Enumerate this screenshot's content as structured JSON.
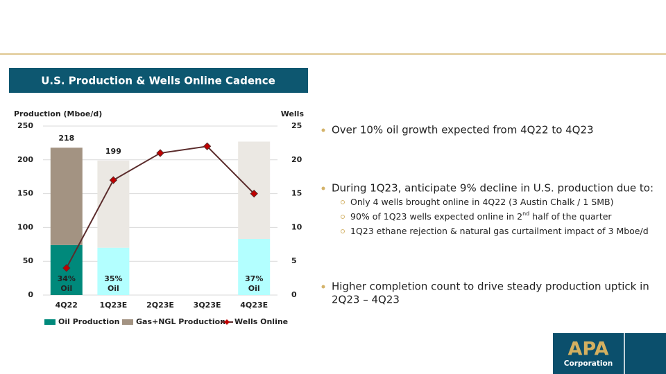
{
  "header": {
    "title": "U.S. Production & Wells Online Cadence"
  },
  "chart_data": {
    "type": "bar",
    "y_axis_title": "Production (Mboe/d)",
    "y2_axis_title": "Wells",
    "categories": [
      "4Q22",
      "1Q23E",
      "2Q23E",
      "3Q23E",
      "4Q23E"
    ],
    "series": [
      {
        "name": "Oil Production",
        "color": "#00897b",
        "colors": [
          "#00897b",
          "#b3ffff",
          null,
          null,
          "#b3ffff"
        ],
        "values": [
          74,
          70,
          null,
          null,
          83
        ]
      },
      {
        "name": "Gas+NGL Production",
        "color": "#a39382",
        "colors": [
          "#a39382",
          "#ebe8e3",
          null,
          null,
          "#ebe8e3"
        ],
        "values": [
          144,
          129,
          null,
          null,
          144
        ]
      },
      {
        "name": "Wells Online",
        "type": "line",
        "axis": "y2",
        "color": "#5b2c2c",
        "marker_color": "#c00000",
        "values": [
          4,
          17,
          21,
          22,
          15
        ]
      }
    ],
    "totals": [
      218,
      199,
      null,
      null,
      null
    ],
    "oil_share_labels": [
      "34%",
      "35%",
      null,
      null,
      "37%"
    ],
    "oil_share_caption": "Oil",
    "ylim": [
      0,
      250
    ],
    "yticks": [
      0,
      50,
      100,
      150,
      200,
      250
    ],
    "y2lim": [
      0,
      25
    ],
    "y2ticks": [
      0,
      5,
      10,
      15,
      20,
      25
    ],
    "grid": true,
    "legend": "bottom"
  },
  "bullets": [
    {
      "text": "Over 10% oil growth expected from 4Q22 to 4Q23"
    },
    {
      "text": "During 1Q23, anticipate 9% decline in U.S. production due to:",
      "sub": [
        {
          "text": "Only 4 wells brought online in 4Q22 (3 Austin Chalk / 1 SMB)"
        },
        {
          "text": "90% of 1Q23 wells expected online in 2",
          "sup": "nd",
          "after": " half of the quarter"
        },
        {
          "text": "1Q23 ethane rejection & natural gas curtailment impact of 3 Mboe/d"
        }
      ]
    },
    {
      "lines": [
        "Higher completion count to drive steady production uptick in",
        "2Q23 – 4Q23"
      ]
    }
  ],
  "logo": {
    "name": "APA",
    "sub": "Corporation"
  }
}
